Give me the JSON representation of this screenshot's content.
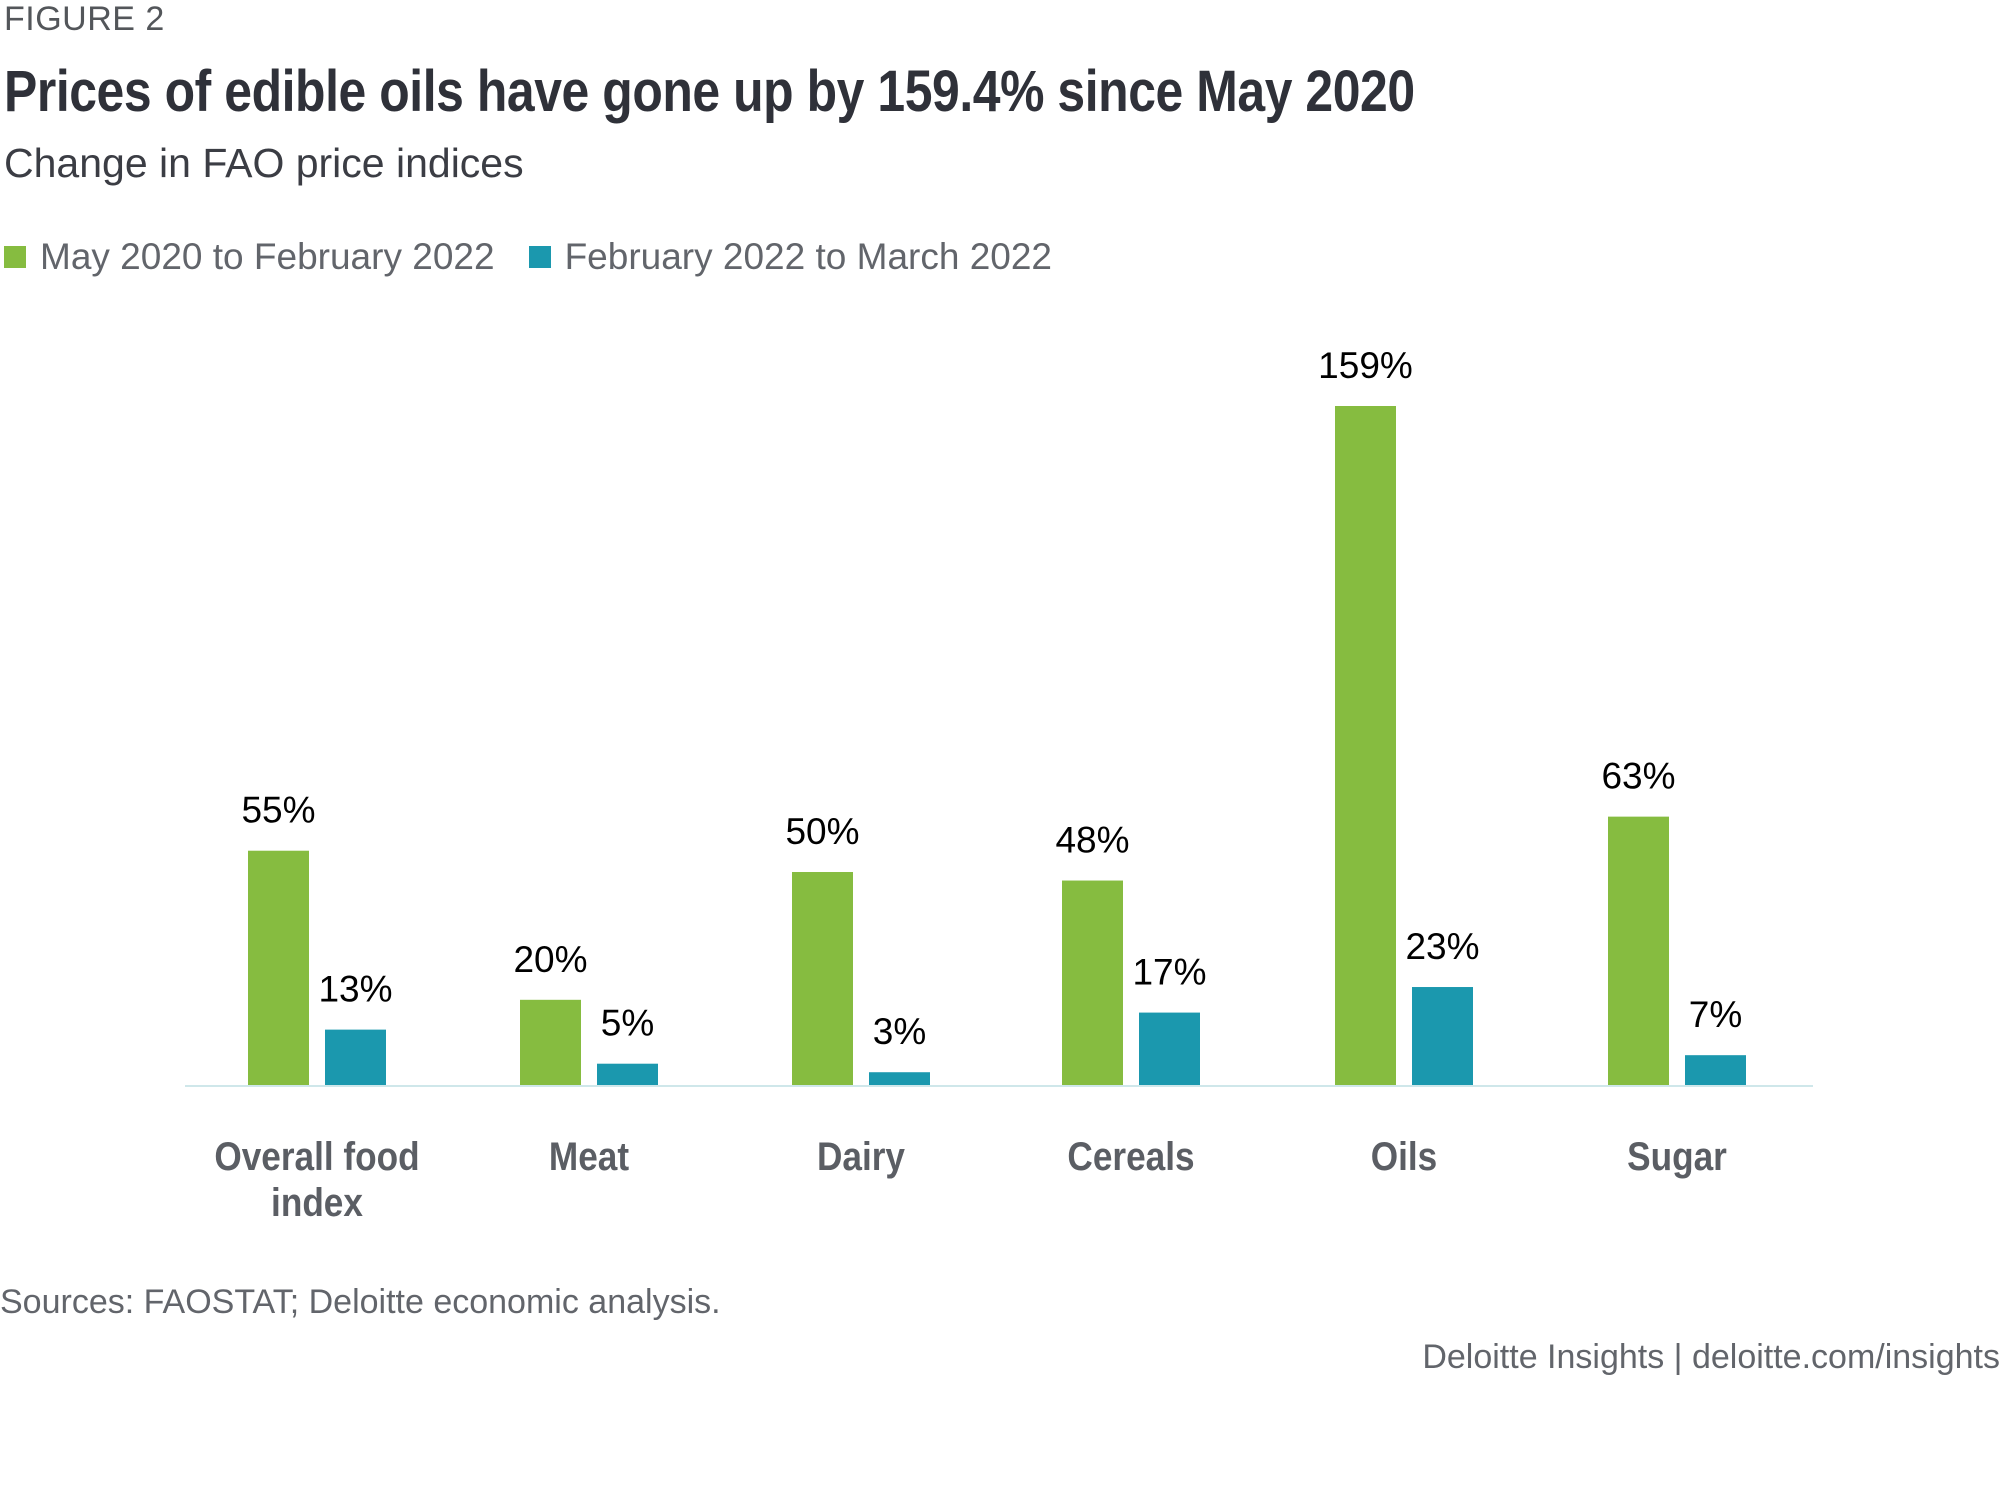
{
  "header": {
    "figure_label": "FIGURE 2",
    "title": "Prices of edible oils have gone up by 159.4% since May 2020",
    "subtitle": "Change in FAO price indices"
  },
  "legend": [
    {
      "label": "May 2020 to February 2022",
      "color": "#86bc40"
    },
    {
      "label": "February 2022 to March 2022",
      "color": "#1b98ae"
    }
  ],
  "footer": {
    "sources": "Sources: FAOSTAT; Deloitte economic analysis.",
    "credit": "Deloitte Insights | deloitte.com/insights"
  },
  "chart_data": {
    "type": "bar",
    "title": "Prices of edible oils have gone up by 159.4% since May 2020",
    "subtitle": "Change in FAO price indices",
    "xlabel": "",
    "ylabel": "",
    "categories": [
      [
        "Overall food",
        "index"
      ],
      [
        "Meat"
      ],
      [
        "Dairy"
      ],
      [
        "Cereals"
      ],
      [
        "Oils"
      ],
      [
        "Sugar"
      ]
    ],
    "series": [
      {
        "name": "May 2020 to February 2022",
        "color": "#86bc40",
        "values": [
          55,
          20,
          50,
          48,
          159.4,
          63
        ],
        "labels": [
          "55%",
          "20%",
          "50%",
          "48%",
          "159%",
          "63%"
        ]
      },
      {
        "name": "February 2022 to March 2022",
        "color": "#1b98ae",
        "values": [
          13,
          5,
          3,
          17,
          23,
          7
        ],
        "labels": [
          "13%",
          "5%",
          "3%",
          "17%",
          "23%",
          "7%"
        ]
      }
    ],
    "ylim": [
      0,
      159.4
    ],
    "grid": false,
    "legend_position": "top-left",
    "axis_color": "#cfe7ea",
    "category_label_color": "#5b5e64",
    "value_label_color": "#000000"
  }
}
